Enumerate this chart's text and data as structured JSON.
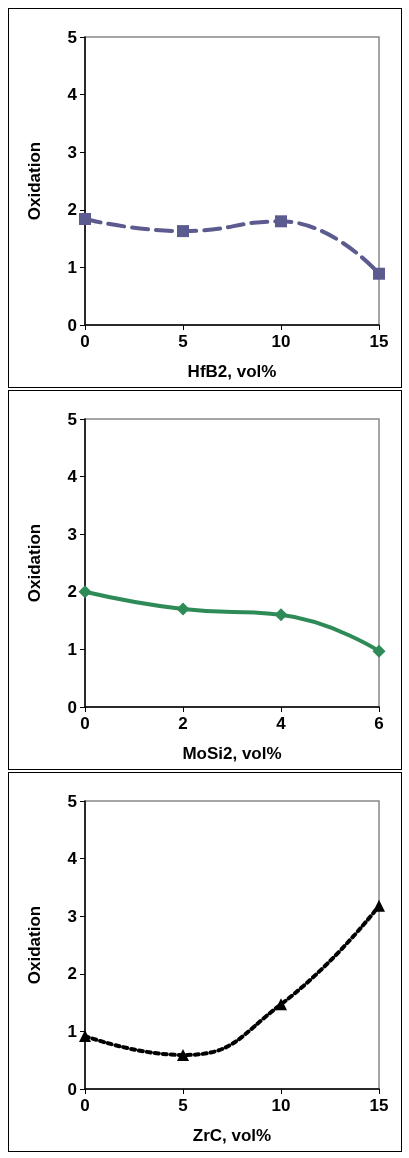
{
  "chart_data": [
    {
      "type": "line",
      "xlabel": "HfB2, vol%",
      "ylabel": "Oxidation",
      "x": [
        0,
        5,
        10,
        15
      ],
      "values": [
        1.84,
        1.63,
        1.8,
        0.89
      ],
      "color": "#5b5b8f",
      "marker": "square",
      "line_style": "dashed",
      "xlim": [
        0,
        15
      ],
      "xticks": [
        0,
        5,
        10,
        15
      ],
      "ylim": [
        0,
        5
      ],
      "yticks": [
        0,
        1,
        2,
        3,
        4,
        5
      ],
      "grid": false
    },
    {
      "type": "line",
      "xlabel": "MoSi2, vol%",
      "ylabel": "Oxidation",
      "x": [
        0,
        2,
        4,
        6
      ],
      "values": [
        2.0,
        1.7,
        1.6,
        0.97
      ],
      "color": "#2e8b57",
      "marker": "diamond",
      "line_style": "solid",
      "xlim": [
        0,
        6
      ],
      "xticks": [
        0,
        2,
        4,
        6
      ],
      "ylim": [
        0,
        5
      ],
      "yticks": [
        0,
        1,
        2,
        3,
        4,
        5
      ],
      "grid": false
    },
    {
      "type": "line",
      "xlabel": "ZrC, vol%",
      "ylabel": "Oxidation",
      "x": [
        0,
        5,
        10,
        15
      ],
      "values": [
        0.92,
        0.59,
        1.47,
        3.18
      ],
      "color": "#000000",
      "marker": "triangle",
      "line_style": "dotted",
      "xlim": [
        0,
        15
      ],
      "xticks": [
        0,
        5,
        10,
        15
      ],
      "ylim": [
        0,
        5
      ],
      "yticks": [
        0,
        1,
        2,
        3,
        4,
        5
      ],
      "grid": false
    }
  ]
}
